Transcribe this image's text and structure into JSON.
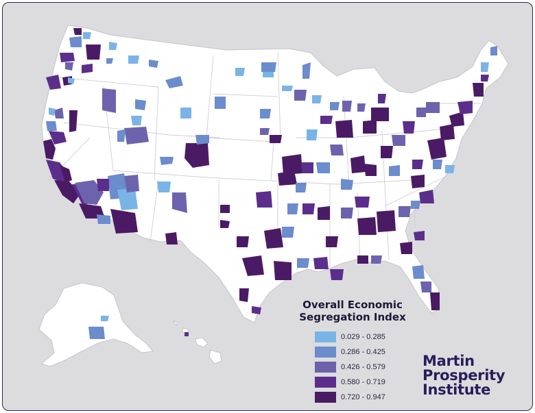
{
  "legend": {
    "title_line1": "Overall Economic",
    "title_line2": "Segregation Index",
    "classes": [
      {
        "label": "0.029 - 0.285",
        "color": "#7ab4e6"
      },
      {
        "label": "0.286 - 0.425",
        "color": "#6b8ccd"
      },
      {
        "label": "0.426 - 0.579",
        "color": "#6d63ad"
      },
      {
        "label": "0.580 - 0.719",
        "color": "#5c2e8c"
      },
      {
        "label": "0.720 - 0.947",
        "color": "#4a1b64"
      }
    ]
  },
  "brand": {
    "line1": "Martin",
    "line2": "Prosperity",
    "line3": "Institute"
  },
  "colors": {
    "background": "#dcdcde",
    "land": "#ffffff",
    "state_border": "#c9c9d2",
    "frame_border": "#2b2350"
  }
}
